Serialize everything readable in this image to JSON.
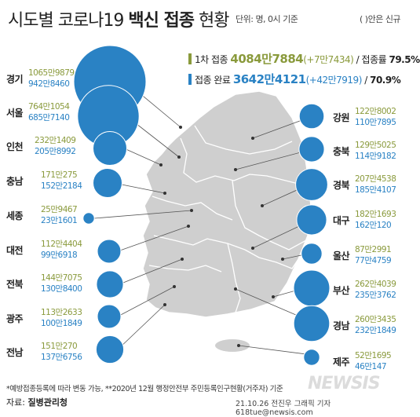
{
  "title": {
    "part1": "시도별 코로나19 ",
    "part2": "백신 접종",
    "part3": " 현황"
  },
  "unit_note": "단위: 명, 0시 기준",
  "paren_note": "( )안은 신규",
  "summary": {
    "first": {
      "label": "1차 접종",
      "value": "4084만7884",
      "new": "(+7만7434)",
      "rate_label": "/ 접종률",
      "rate": "79.5%"
    },
    "complete": {
      "label": "접종 완료",
      "value": "3642만4121",
      "new": "(+42만7919)",
      "rate_label": "/",
      "rate": "70.9%"
    }
  },
  "colors": {
    "first_dose": "#8a9a3c",
    "completed": "#2a82c4",
    "map": "#cfcfcf",
    "bubble": "#2a82c4"
  },
  "regions_left": [
    {
      "name": "경기",
      "first": "1065만9879",
      "done": "942만8460"
    },
    {
      "name": "서울",
      "first": "764만1054",
      "done": "685만7140"
    },
    {
      "name": "인천",
      "first": "232만1409",
      "done": "205만8992"
    },
    {
      "name": "충남",
      "first": "171만275",
      "done": "152만2184"
    },
    {
      "name": "세종",
      "first": "25만9467",
      "done": "23만1601"
    },
    {
      "name": "대전",
      "first": "112만4404",
      "done": "99만6918"
    },
    {
      "name": "전북",
      "first": "144만7075",
      "done": "130만8400"
    },
    {
      "name": "광주",
      "first": "113만2633",
      "done": "100만1849"
    },
    {
      "name": "전남",
      "first": "151만270",
      "done": "137만6756"
    }
  ],
  "regions_right": [
    {
      "name": "강원",
      "first": "122만8002",
      "done": "110만7895"
    },
    {
      "name": "충북",
      "first": "129만5025",
      "done": "114만9182"
    },
    {
      "name": "경북",
      "first": "207만4538",
      "done": "185만4107"
    },
    {
      "name": "대구",
      "first": "182만1693",
      "done": "162만120"
    },
    {
      "name": "울산",
      "first": "87만2991",
      "done": "77만4759"
    },
    {
      "name": "부산",
      "first": "262만4039",
      "done": "235만3762"
    },
    {
      "name": "경남",
      "first": "260만3435",
      "done": "232만1849"
    },
    {
      "name": "제주",
      "first": "52만1695",
      "done": "46만147"
    }
  ],
  "bubble_values_done": {
    "경기": 9428460,
    "서울": 6857140,
    "인천": 2058992,
    "충남": 1522184,
    "세종": 231601,
    "대전": 996918,
    "전북": 1308400,
    "광주": 1001849,
    "전남": 1376756,
    "강원": 1107895,
    "충북": 1149182,
    "경북": 1854107,
    "대구": 1620120,
    "울산": 774759,
    "부산": 2353762,
    "경남": 2321849,
    "제주": 460147
  },
  "footnote": "*예방접종등록에 따라 변동 가능,  **2020년 12월 행정안전부 주민등록인구현황(거주자) 기준",
  "source": {
    "label": "자료: ",
    "name": "질병관리청"
  },
  "credit": "21.10.26 전진우 그래픽 기자 618tue@newsis.com",
  "logo": "NEWSIS"
}
